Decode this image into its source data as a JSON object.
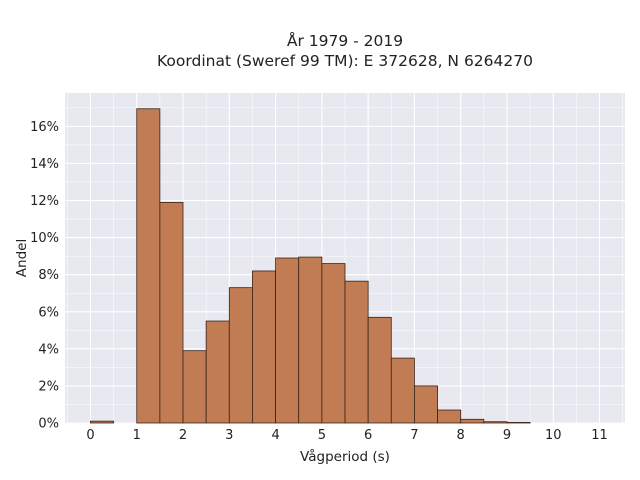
{
  "chart_data": {
    "type": "bar",
    "title_line1": "År 1979 - 2019",
    "title_line2": "Koordinat (Sweref 99 TM): E 372628, N 6264270",
    "xlabel": "Vågperiod (s)",
    "ylabel": "Andel",
    "bin_width": 0.5,
    "bins": [
      {
        "x0": 0.0,
        "value": 0.1
      },
      {
        "x0": 0.5,
        "value": 0.0
      },
      {
        "x0": 1.0,
        "value": 16.95
      },
      {
        "x0": 1.5,
        "value": 11.9
      },
      {
        "x0": 2.0,
        "value": 3.9
      },
      {
        "x0": 2.5,
        "value": 5.5
      },
      {
        "x0": 3.0,
        "value": 7.3
      },
      {
        "x0": 3.5,
        "value": 8.2
      },
      {
        "x0": 4.0,
        "value": 8.9
      },
      {
        "x0": 4.5,
        "value": 8.95
      },
      {
        "x0": 5.0,
        "value": 8.6
      },
      {
        "x0": 5.5,
        "value": 7.65
      },
      {
        "x0": 6.0,
        "value": 5.7
      },
      {
        "x0": 6.5,
        "value": 3.5
      },
      {
        "x0": 7.0,
        "value": 2.0
      },
      {
        "x0": 7.5,
        "value": 0.7
      },
      {
        "x0": 8.0,
        "value": 0.2
      },
      {
        "x0": 8.5,
        "value": 0.07
      },
      {
        "x0": 9.0,
        "value": 0.03
      }
    ],
    "xlim": [
      -0.55,
      11.55
    ],
    "ylim": [
      0,
      17.8
    ],
    "x_ticks": [
      0,
      1,
      2,
      3,
      4,
      5,
      6,
      7,
      8,
      9,
      10,
      11
    ],
    "y_ticks": [
      0,
      2,
      4,
      6,
      8,
      10,
      12,
      14,
      16
    ],
    "y_tick_suffix": "%",
    "grid": true,
    "colors": {
      "bar_fill": "#c27c54",
      "bar_edge": "#3a2418",
      "plot_background": "#e8e8f0",
      "grid": "#ffffff"
    }
  }
}
